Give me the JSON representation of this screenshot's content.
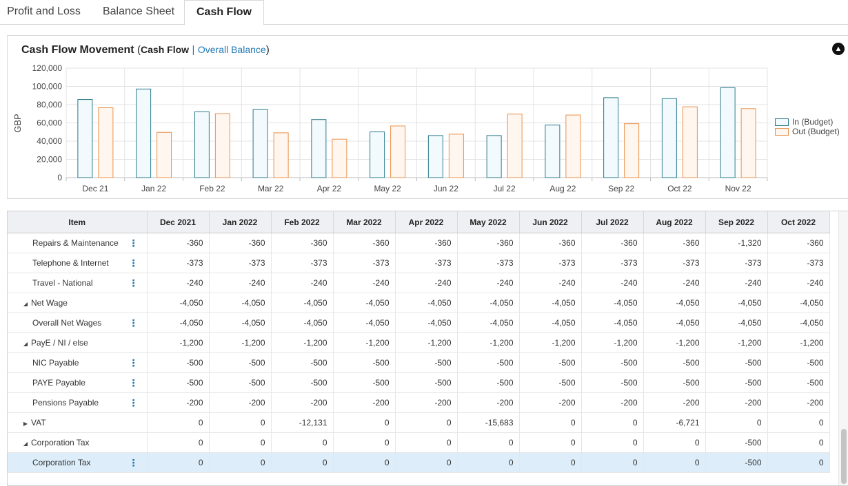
{
  "tabs": [
    {
      "label": "Profit and Loss",
      "active": false
    },
    {
      "label": "Balance Sheet",
      "active": false
    },
    {
      "label": "Cash Flow",
      "active": true
    }
  ],
  "chart_header": {
    "title": "Cash Flow Movement",
    "open_paren": "(",
    "current": "Cash Flow",
    "separator": "|",
    "alt_link": "Overall Balance",
    "close_paren": ")",
    "collapse_icon": "chevron-up-circle-icon"
  },
  "chart_data": {
    "type": "bar",
    "categories": [
      "Dec 21",
      "Jan 22",
      "Feb 22",
      "Mar 22",
      "Apr 22",
      "May 22",
      "Jun 22",
      "Jul 22",
      "Aug 22",
      "Sep 22",
      "Oct 22",
      "Nov 22"
    ],
    "series": [
      {
        "name": "In (Budget)",
        "color": "#2b7a8c",
        "fill": "#f2fafd",
        "values": [
          86000,
          97500,
          72500,
          75000,
          64000,
          50500,
          46500,
          46500,
          58000,
          88000,
          87000,
          99000
        ]
      },
      {
        "name": "Out (Budget)",
        "color": "#e8914a",
        "fill": "#fff6ef",
        "values": [
          77000,
          50000,
          70500,
          49500,
          42500,
          57000,
          48000,
          70000,
          69000,
          59500,
          78000,
          76000
        ]
      }
    ],
    "ylabel": "GBP",
    "ylim": [
      0,
      120000
    ],
    "yticks": [
      0,
      20000,
      40000,
      60000,
      80000,
      100000,
      120000
    ],
    "ytick_labels": [
      "0",
      "20,000",
      "40,000",
      "60,000",
      "80,000",
      "100,000",
      "120,000"
    ],
    "grid": true,
    "legend": "right"
  },
  "table": {
    "item_header": "Item",
    "columns": [
      "Dec 2021",
      "Jan 2022",
      "Feb 2022",
      "Mar 2022",
      "Apr 2022",
      "May 2022",
      "Jun 2022",
      "Jul 2022",
      "Aug 2022",
      "Sep 2022",
      "Oct 2022"
    ],
    "rows": [
      {
        "label": "Repairs & Maintenance",
        "level": 1,
        "expander": "",
        "menu": true,
        "selected": false,
        "values": [
          "-360",
          "-360",
          "-360",
          "-360",
          "-360",
          "-360",
          "-360",
          "-360",
          "-360",
          "-1,320",
          "-360"
        ]
      },
      {
        "label": "Telephone & Internet",
        "level": 1,
        "expander": "",
        "menu": true,
        "selected": false,
        "values": [
          "-373",
          "-373",
          "-373",
          "-373",
          "-373",
          "-373",
          "-373",
          "-373",
          "-373",
          "-373",
          "-373"
        ]
      },
      {
        "label": "Travel - National",
        "level": 1,
        "expander": "",
        "menu": true,
        "selected": false,
        "values": [
          "-240",
          "-240",
          "-240",
          "-240",
          "-240",
          "-240",
          "-240",
          "-240",
          "-240",
          "-240",
          "-240"
        ]
      },
      {
        "label": "Net Wage",
        "level": 0,
        "expander": "◢",
        "menu": false,
        "selected": false,
        "values": [
          "-4,050",
          "-4,050",
          "-4,050",
          "-4,050",
          "-4,050",
          "-4,050",
          "-4,050",
          "-4,050",
          "-4,050",
          "-4,050",
          "-4,050"
        ]
      },
      {
        "label": "Overall Net Wages",
        "level": 1,
        "expander": "",
        "menu": true,
        "selected": false,
        "values": [
          "-4,050",
          "-4,050",
          "-4,050",
          "-4,050",
          "-4,050",
          "-4,050",
          "-4,050",
          "-4,050",
          "-4,050",
          "-4,050",
          "-4,050"
        ]
      },
      {
        "label": "PayE / NI / else",
        "level": 0,
        "expander": "◢",
        "menu": false,
        "selected": false,
        "values": [
          "-1,200",
          "-1,200",
          "-1,200",
          "-1,200",
          "-1,200",
          "-1,200",
          "-1,200",
          "-1,200",
          "-1,200",
          "-1,200",
          "-1,200"
        ]
      },
      {
        "label": "NIC Payable",
        "level": 1,
        "expander": "",
        "menu": true,
        "selected": false,
        "values": [
          "-500",
          "-500",
          "-500",
          "-500",
          "-500",
          "-500",
          "-500",
          "-500",
          "-500",
          "-500",
          "-500"
        ]
      },
      {
        "label": "PAYE Payable",
        "level": 1,
        "expander": "",
        "menu": true,
        "selected": false,
        "values": [
          "-500",
          "-500",
          "-500",
          "-500",
          "-500",
          "-500",
          "-500",
          "-500",
          "-500",
          "-500",
          "-500"
        ]
      },
      {
        "label": "Pensions Payable",
        "level": 1,
        "expander": "",
        "menu": true,
        "selected": false,
        "values": [
          "-200",
          "-200",
          "-200",
          "-200",
          "-200",
          "-200",
          "-200",
          "-200",
          "-200",
          "-200",
          "-200"
        ]
      },
      {
        "label": "VAT",
        "level": 0,
        "expander": "▶",
        "menu": false,
        "selected": false,
        "values": [
          "0",
          "0",
          "-12,131",
          "0",
          "0",
          "-15,683",
          "0",
          "0",
          "-6,721",
          "0",
          "0"
        ]
      },
      {
        "label": "Corporation Tax",
        "level": 0,
        "expander": "◢",
        "menu": false,
        "selected": false,
        "values": [
          "0",
          "0",
          "0",
          "0",
          "0",
          "0",
          "0",
          "0",
          "0",
          "-500",
          "0"
        ]
      },
      {
        "label": "Corporation Tax",
        "level": 1,
        "expander": "",
        "menu": true,
        "selected": true,
        "values": [
          "0",
          "0",
          "0",
          "0",
          "0",
          "0",
          "0",
          "0",
          "0",
          "-500",
          "0"
        ]
      }
    ]
  }
}
